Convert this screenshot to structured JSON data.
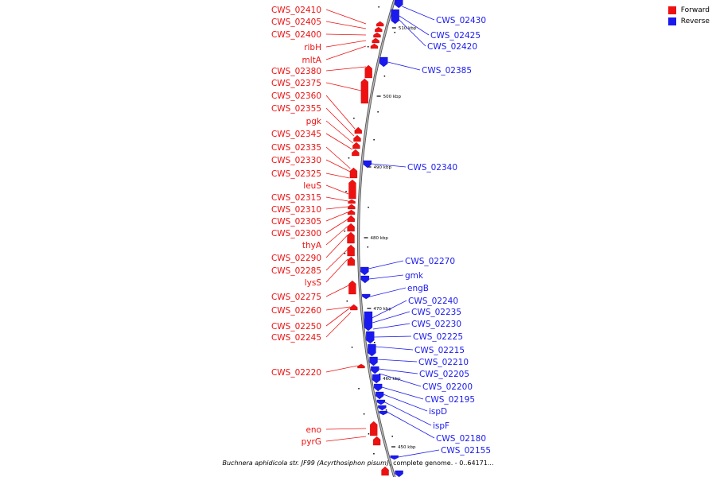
{
  "colors": {
    "forward": "#ee1111",
    "reverse": "#1a1aee",
    "backbone": "#888888"
  },
  "legend": {
    "forward": "Forward",
    "reverse": "Reverse"
  },
  "caption": {
    "species": "Buchnera aphidicola str. JF99 (Acyrthosiphon pisum)",
    "rest": ", complete genome. - 0..64171..."
  },
  "ticks": [
    "510 kbp",
    "500 kbp",
    "490 kbp",
    "480 kbp",
    "470 kbp",
    "460 kbp",
    "450 kbp"
  ],
  "forward_labels": [
    "CWS_02410",
    "CWS_02405",
    "CWS_02400",
    "ribH",
    "mltA",
    "CWS_02380",
    "CWS_02375",
    "CWS_02360",
    "CWS_02355",
    "pgk",
    "CWS_02345",
    "CWS_02335",
    "CWS_02330",
    "CWS_02325",
    "leuS",
    "CWS_02315",
    "CWS_02310",
    "CWS_02305",
    "CWS_02300",
    "thyA",
    "CWS_02290",
    "CWS_02285",
    "lysS",
    "CWS_02275",
    "CWS_02260",
    "CWS_02250",
    "CWS_02245",
    "CWS_02220",
    "eno",
    "pyrG"
  ],
  "reverse_labels": [
    "CWS_02430",
    "CWS_02425",
    "CWS_02420",
    "CWS_02385",
    "CWS_02340",
    "CWS_02270",
    "gmk",
    "engB",
    "CWS_02240",
    "CWS_02235",
    "CWS_02230",
    "CWS_02225",
    "CWS_02215",
    "CWS_02210",
    "CWS_02205",
    "CWS_02200",
    "CWS_02195",
    "ispD",
    "ispF",
    "CWS_02180",
    "CWS_02155"
  ]
}
